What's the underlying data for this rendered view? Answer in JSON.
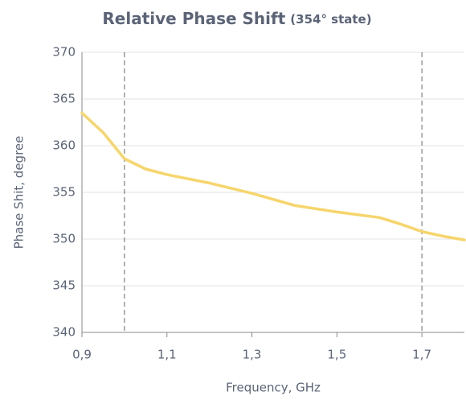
{
  "chart_data": {
    "type": "line",
    "title": "Relative Phase Shift",
    "subtitle": "(354° state)",
    "x_label": "Frequency, GHz",
    "y_label": "Phase Shit, degree",
    "x": [
      0.9,
      0.95,
      1.0,
      1.05,
      1.1,
      1.2,
      1.3,
      1.4,
      1.5,
      1.6,
      1.65,
      1.7,
      1.75,
      1.8
    ],
    "series": [
      {
        "name": "Relative Phase Shift",
        "color": "#f6d56c",
        "values": [
          363.5,
          361.4,
          358.6,
          357.5,
          356.9,
          356.0,
          354.9,
          353.6,
          352.9,
          352.3,
          351.6,
          350.8,
          350.3,
          349.9
        ]
      }
    ],
    "xlim": [
      0.9,
      1.8
    ],
    "xticks": [
      {
        "value": 0.9,
        "label": "0,9"
      },
      {
        "value": 1.1,
        "label": "1,1"
      },
      {
        "value": 1.3,
        "label": "1,3"
      },
      {
        "value": 1.5,
        "label": "1,5"
      },
      {
        "value": 1.7,
        "label": "1,7"
      }
    ],
    "ylim": [
      340,
      370
    ],
    "yticks": [
      340,
      345,
      350,
      355,
      360,
      365,
      370
    ],
    "vlines": [
      1.0,
      1.7
    ],
    "grid": true
  }
}
